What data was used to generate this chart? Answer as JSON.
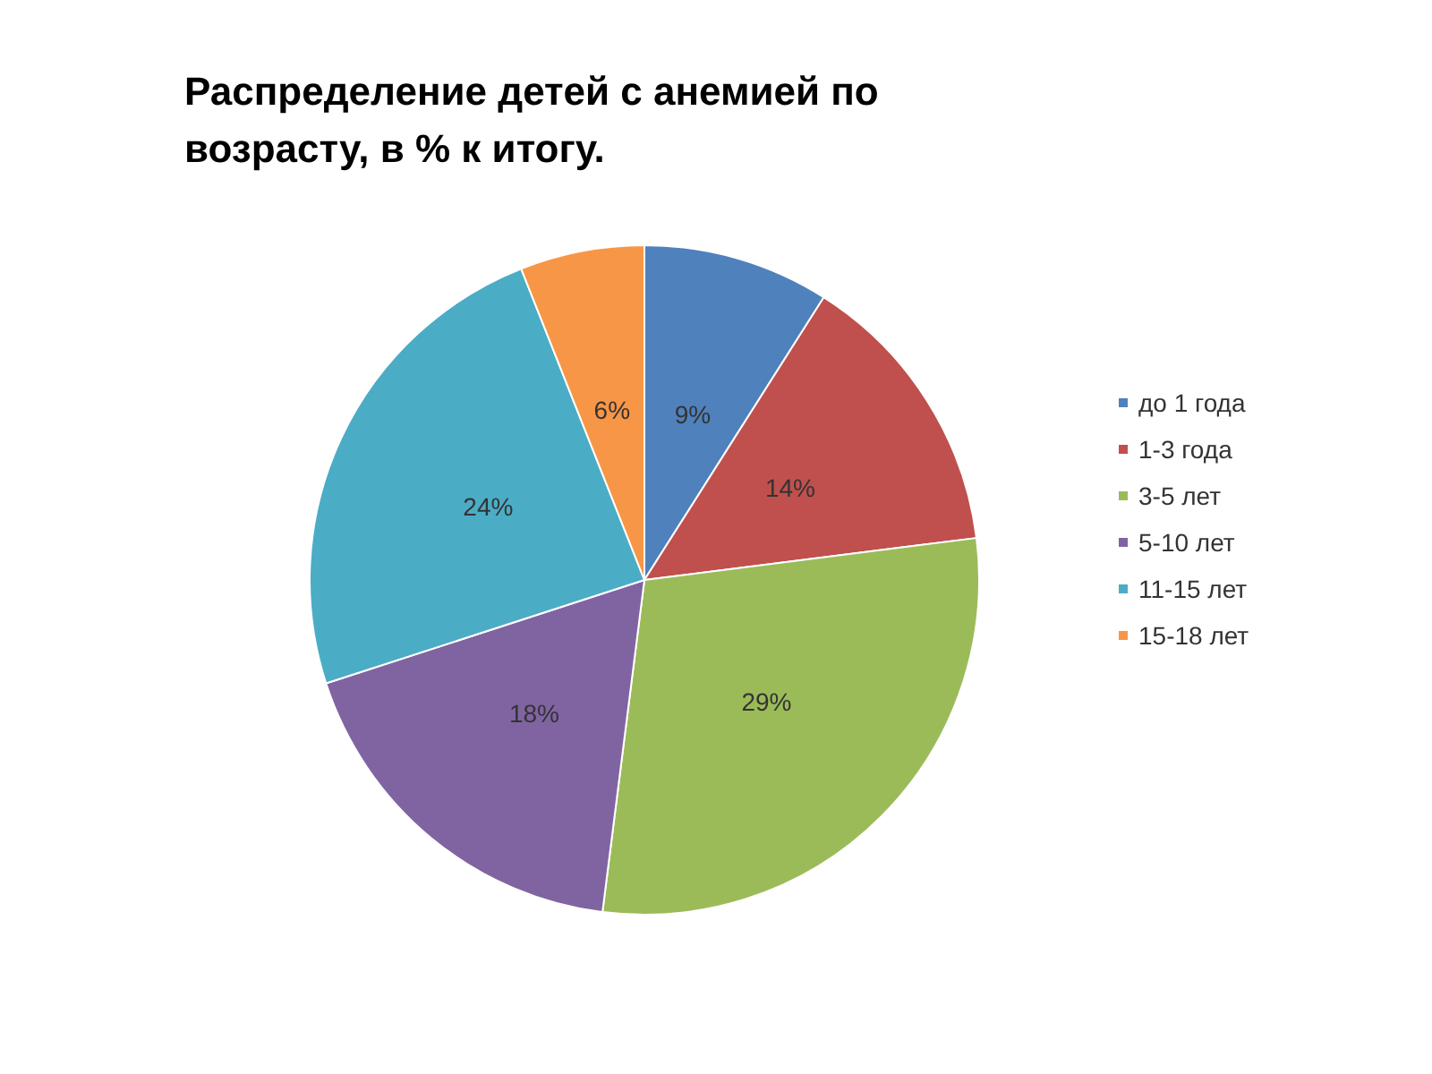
{
  "chart_data": {
    "type": "pie",
    "title": "Распределение детей с анемией по возрасту, в % к итогу.",
    "categories": [
      "до 1 года",
      "1-3 года",
      "3-5 лет",
      "5-10 лет",
      "11-15 лет",
      "15-18 лет"
    ],
    "values": [
      9,
      14,
      29,
      18,
      24,
      6
    ],
    "value_labels": [
      "9%",
      "14%",
      "29%",
      "18%",
      "24%",
      "6%"
    ],
    "colors": [
      "#4f81bd",
      "#c0504d",
      "#9bbb59",
      "#8064a2",
      "#4bacc6",
      "#f79646"
    ],
    "legend": "right"
  }
}
